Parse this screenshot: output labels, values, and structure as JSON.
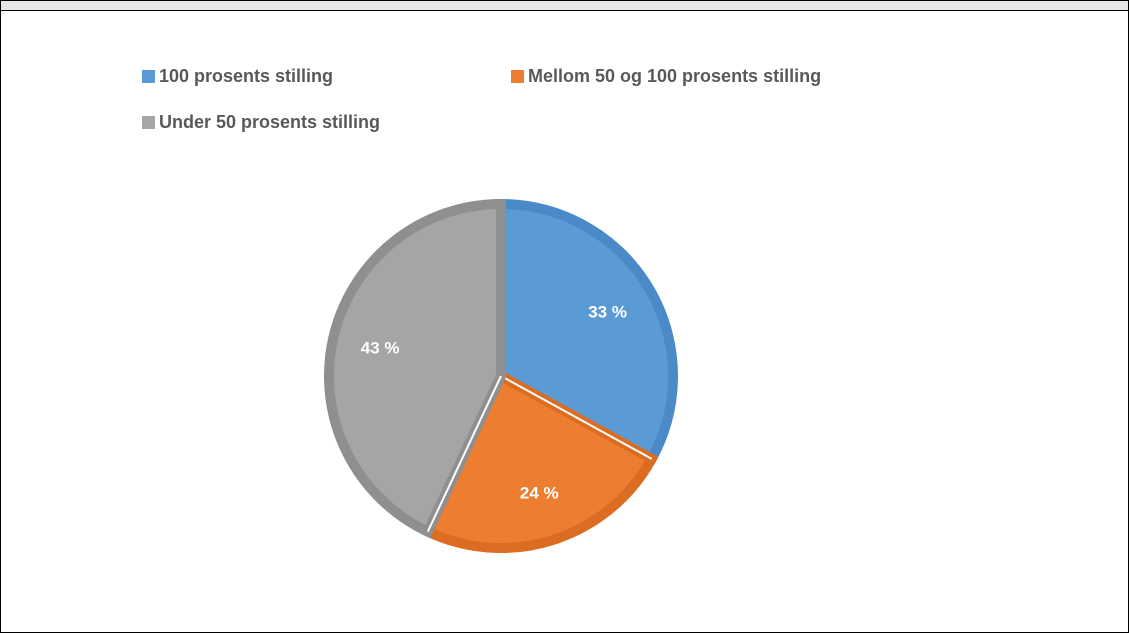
{
  "chart_data": {
    "type": "pie",
    "slices": [
      {
        "name": "100 prosents stilling",
        "value": 33,
        "label": "33 %",
        "color": "#5b9bd5",
        "border": "#4a8ac8"
      },
      {
        "name": "Mellom 50 og 100 prosents stilling",
        "value": 24,
        "label": "24 %",
        "color": "#ed7d31",
        "border": "#dc6c22"
      },
      {
        "name": "Under 50 prosents stilling",
        "value": 43,
        "label": "43 %",
        "color": "#a5a5a5",
        "border": "#8f8f8f"
      }
    ],
    "legend_position": "top",
    "start_angle_deg": 0,
    "direction": "clockwise"
  },
  "legend": {
    "items": [
      {
        "label": "100 prosents stilling"
      },
      {
        "label": "Mellom 50 og 100 prosents stilling"
      },
      {
        "label": "Under 50 prosents stilling"
      }
    ]
  }
}
